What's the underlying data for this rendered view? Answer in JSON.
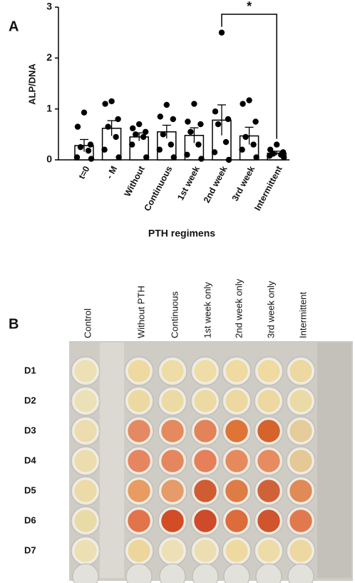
{
  "chart_data": {
    "type": "bar",
    "panel": "A",
    "ylabel": "ALP/DNA",
    "xlabel": "PTH regimens",
    "categories": [
      "t=0",
      "- M",
      "Without",
      "Continuous",
      "1st week",
      "2nd week",
      "3rd week",
      "Intermittent"
    ],
    "values": [
      0.28,
      0.62,
      0.45,
      0.55,
      0.48,
      0.78,
      0.47,
      0.13
    ],
    "errors": [
      0.12,
      0.15,
      0.08,
      0.13,
      0.15,
      0.3,
      0.17,
      0.04
    ],
    "points": [
      [
        0.93,
        0.65,
        0.3,
        0.25,
        0.18,
        0.05,
        0.02
      ],
      [
        1.15,
        1.1,
        0.8,
        0.65,
        0.45,
        0.2,
        0.05
      ],
      [
        0.7,
        0.62,
        0.55,
        0.5,
        0.45,
        0.3,
        0.05
      ],
      [
        1.08,
        0.85,
        0.8,
        0.5,
        0.3,
        0.2,
        0.05
      ],
      [
        1.1,
        0.75,
        0.7,
        0.55,
        0.3,
        0.1,
        0.02
      ],
      [
        2.5,
        0.95,
        0.8,
        0.7,
        0.35,
        0.15,
        0.0
      ],
      [
        1.17,
        1.1,
        0.75,
        0.45,
        0.3,
        0.2,
        0.05
      ],
      [
        0.3,
        0.2,
        0.15,
        0.12,
        0.1,
        0.08,
        0.05
      ]
    ],
    "significance": {
      "between": [
        "2nd week",
        "Intermittent"
      ],
      "label": "*"
    },
    "ylim": [
      0,
      3
    ],
    "yticks": [
      0,
      1,
      2,
      3
    ],
    "color": "#ffffff",
    "point_color": "#000000"
  },
  "plate": {
    "panel": "B",
    "columns": [
      "Control",
      "Without PTH",
      "Continuous",
      "1st week only",
      "2nd  week only",
      "3rd  week only",
      "Intermittent"
    ],
    "rows": [
      "D1",
      "D2",
      "D3",
      "D4",
      "D5",
      "D6",
      "D7"
    ],
    "wells": [
      [
        "#ece0b4",
        "#eed9a0",
        "#eedca6",
        "#efdda8",
        "#efdaa2",
        "#efdaa2",
        "#ecd8a0"
      ],
      [
        "#ece0b6",
        "#ecd9a2",
        "#ecdaa4",
        "#ecdaa4",
        "#ecd8a0",
        "#ecd8a0",
        "#eadaa6"
      ],
      [
        "#ecdcae",
        "#e48a62",
        "#e48a5e",
        "#e3835a",
        "#de7436",
        "#d6622c",
        "#e6cc9a"
      ],
      [
        "#ecdcae",
        "#e68660",
        "#e6865e",
        "#e5805a",
        "#e68a5e",
        "#e68c60",
        "#e4c896"
      ],
      [
        "#ecdaa8",
        "#e89c62",
        "#e59c6a",
        "#cf5c32",
        "#de7c46",
        "#d0623a",
        "#e08a58"
      ],
      [
        "#eadaa6",
        "#e2744c",
        "#d24c26",
        "#cf4a28",
        "#dc6c3c",
        "#d0542e",
        "#e07a4e"
      ],
      [
        "#ecdfb4",
        "#ecd69c",
        "#ede0b6",
        "#ecdeb0",
        "#eedaa0",
        "#eedca8",
        "#ecd8a0"
      ]
    ]
  }
}
